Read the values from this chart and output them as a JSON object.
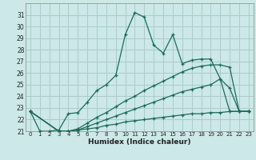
{
  "xlabel": "Humidex (Indice chaleur)",
  "background_color": "#cce8e8",
  "grid_color": "#aacccc",
  "line_color": "#1a6b5a",
  "xlim": [
    -0.5,
    23.5
  ],
  "ylim": [
    21,
    32
  ],
  "yticks": [
    21,
    22,
    23,
    24,
    25,
    26,
    27,
    28,
    29,
    30,
    31
  ],
  "xticks": [
    0,
    1,
    2,
    3,
    4,
    5,
    6,
    7,
    8,
    9,
    10,
    11,
    12,
    13,
    14,
    15,
    16,
    17,
    18,
    19,
    20,
    21,
    22,
    23
  ],
  "series": [
    {
      "x": [
        0,
        1,
        2,
        3,
        4,
        5,
        6,
        7,
        8,
        9,
        10,
        11,
        12,
        13,
        14,
        15,
        16,
        17,
        18,
        19,
        20,
        21,
        22,
        23
      ],
      "y": [
        22.7,
        21.0,
        21.0,
        21.1,
        22.5,
        22.6,
        23.5,
        24.5,
        25.0,
        25.8,
        29.3,
        31.2,
        30.8,
        28.4,
        27.7,
        29.3,
        26.8,
        27.1,
        27.2,
        27.2,
        25.5,
        24.7,
        22.7,
        22.7
      ]
    },
    {
      "x": [
        0,
        3,
        4,
        5,
        6,
        7,
        8,
        9,
        10,
        11,
        12,
        13,
        14,
        15,
        16,
        17,
        18,
        19,
        20,
        21,
        22,
        23
      ],
      "y": [
        22.7,
        21.0,
        21.0,
        21.2,
        21.7,
        22.2,
        22.6,
        23.1,
        23.6,
        24.0,
        24.5,
        24.9,
        25.3,
        25.7,
        26.1,
        26.4,
        26.6,
        26.7,
        26.7,
        26.5,
        22.7,
        22.7
      ]
    },
    {
      "x": [
        0,
        3,
        4,
        5,
        6,
        7,
        8,
        9,
        10,
        11,
        12,
        13,
        14,
        15,
        16,
        17,
        18,
        19,
        20,
        21,
        22,
        23
      ],
      "y": [
        22.7,
        21.0,
        21.0,
        21.1,
        21.4,
        21.7,
        22.0,
        22.3,
        22.6,
        22.9,
        23.2,
        23.5,
        23.8,
        24.1,
        24.4,
        24.6,
        24.8,
        25.0,
        25.5,
        22.7,
        22.7,
        22.7
      ]
    },
    {
      "x": [
        0,
        3,
        4,
        5,
        6,
        7,
        8,
        9,
        10,
        11,
        12,
        13,
        14,
        15,
        16,
        17,
        18,
        19,
        20,
        21,
        22,
        23
      ],
      "y": [
        22.7,
        21.0,
        21.0,
        21.1,
        21.2,
        21.3,
        21.5,
        21.6,
        21.8,
        21.9,
        22.0,
        22.1,
        22.2,
        22.3,
        22.4,
        22.5,
        22.5,
        22.6,
        22.6,
        22.7,
        22.7,
        22.7
      ]
    }
  ]
}
